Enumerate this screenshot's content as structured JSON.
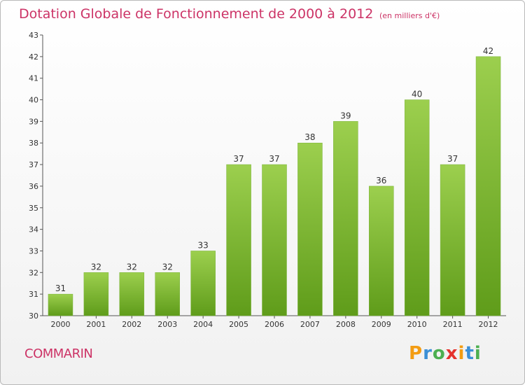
{
  "header": {
    "title": "Dotation Globale de Fonctionnement de 2000 à 2012",
    "unit": "(en milliers d'€)"
  },
  "footer": {
    "commune": "COMMARIN",
    "logo": {
      "letters": [
        "P",
        "r",
        "o",
        "x",
        "i",
        "t",
        "i"
      ],
      "colors": [
        "#f39c12",
        "#3b8fd6",
        "#4caf50",
        "#e5322d",
        "#f39c12",
        "#3b8fd6",
        "#4caf50"
      ]
    }
  },
  "chart_data": {
    "type": "bar",
    "title": "Dotation Globale de Fonctionnement de 2000 à 2012",
    "subtitle": "(en milliers d'€)",
    "categories": [
      "2000",
      "2001",
      "2002",
      "2003",
      "2004",
      "2005",
      "2006",
      "2007",
      "2008",
      "2009",
      "2010",
      "2011",
      "2012"
    ],
    "values": [
      31,
      32,
      32,
      32,
      33,
      37,
      37,
      38,
      39,
      36,
      40,
      37,
      42
    ],
    "data_labels": [
      "31",
      "32",
      "32",
      "32",
      "33",
      "37",
      "37",
      "38",
      "39",
      "36",
      "40",
      "37",
      "42"
    ],
    "ylim": [
      30,
      43
    ],
    "yticks": [
      "30",
      "31",
      "32",
      "33",
      "34",
      "35",
      "36",
      "37",
      "38",
      "39",
      "40",
      "41",
      "42",
      "43"
    ],
    "grid": false,
    "bar_color_top": "#9ccf4e",
    "bar_color_bottom": "#5f9c1a",
    "text_color": "#cc3366"
  }
}
